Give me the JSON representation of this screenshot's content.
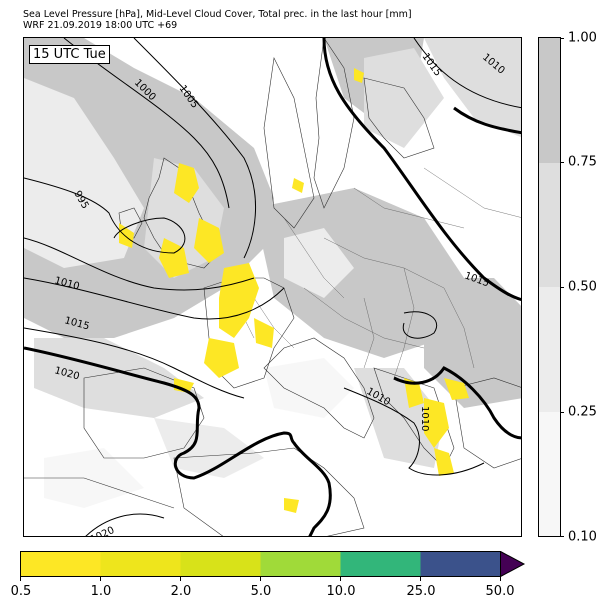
{
  "title": {
    "line1": "Sea Level Pressure [hPa], Mid-Level Cloud Cover, Total prec. in the last hour [mm]",
    "line2": "WRF 21.09.2019 18:00 UTC +69"
  },
  "time_label": "15 UTC Tue",
  "isobar_labels": [
    "1000",
    "1005",
    "995",
    "1010",
    "1015",
    "1020",
    "1010",
    "1015",
    "1010",
    "1015",
    "1020",
    "1010"
  ],
  "cloud_colorbar": {
    "ticks": [
      "1.00",
      "0.75",
      "0.50",
      "0.25",
      "0.10"
    ],
    "colors": [
      "#c8c8c8",
      "#dedede",
      "#ececec",
      "#f7f7f7"
    ]
  },
  "precip_colorbar": {
    "ticks": [
      "0.5",
      "1.0",
      "2.0",
      "5.0",
      "10.0",
      "25.0",
      "50.0"
    ],
    "colors": [
      "#fde725",
      "#eee51c",
      "#d8e219",
      "#a0da39",
      "#32b67a",
      "#3b528b",
      "#440154"
    ]
  }
}
